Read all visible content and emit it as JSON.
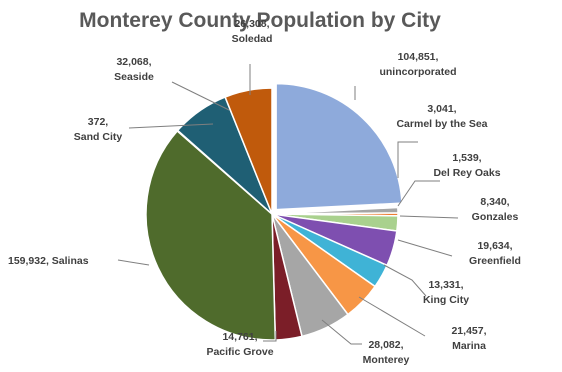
{
  "chart_data": {
    "type": "pie",
    "title": "Monterey County Population by City",
    "slices": [
      {
        "value": 104851,
        "label_lines": [
          "104,851,",
          "unincorporated"
        ],
        "color": "#8eaadb",
        "name": "slice-unincorporated"
      },
      {
        "value": 3041,
        "label_lines": [
          "3,041,",
          "Carmel by the Sea"
        ],
        "color": "#a5a5a5",
        "name": "slice-carmel"
      },
      {
        "value": 1539,
        "label_lines": [
          "1,539,",
          "Del Rey Oaks"
        ],
        "color": "#ed7d31",
        "name": "slice-del-rey-oaks"
      },
      {
        "value": 8340,
        "label_lines": [
          "8,340,",
          "Gonzales"
        ],
        "color": "#a9d18e",
        "name": "slice-gonzales"
      },
      {
        "value": 19634,
        "label_lines": [
          "19,634,",
          "Greenfield"
        ],
        "color": "#7e4fb0",
        "name": "slice-greenfield"
      },
      {
        "value": 13331,
        "label_lines": [
          "13,331,",
          "King City"
        ],
        "color": "#3fb3d6",
        "name": "slice-king-city"
      },
      {
        "value": 21457,
        "label_lines": [
          "21,457,",
          "Marina"
        ],
        "color": "#f79646",
        "name": "slice-marina"
      },
      {
        "value": 28082,
        "label_lines": [
          "28,082,",
          "Monterey"
        ],
        "color": "#a6a6a6",
        "name": "slice-monterey"
      },
      {
        "value": 14761,
        "label_lines": [
          "14,761,",
          "Pacific Grove"
        ],
        "color": "#7b1e28",
        "name": "slice-pacific-grove"
      },
      {
        "value": 159932,
        "label_lines": [
          "159,932, Salinas"
        ],
        "color": "#4f6b2c",
        "name": "slice-salinas"
      },
      {
        "value": 372,
        "label_lines": [
          "372,",
          "Sand City"
        ],
        "color": "#2e5a8c",
        "name": "slice-sand-city"
      },
      {
        "value": 32068,
        "label_lines": [
          "32,068,",
          "Seaside"
        ],
        "color": "#1f5f74",
        "name": "slice-seaside"
      },
      {
        "value": 26308,
        "label_lines": [
          "26,308,",
          "Soledad"
        ],
        "color": "#c05a0c",
        "name": "slice-soledad"
      }
    ]
  }
}
